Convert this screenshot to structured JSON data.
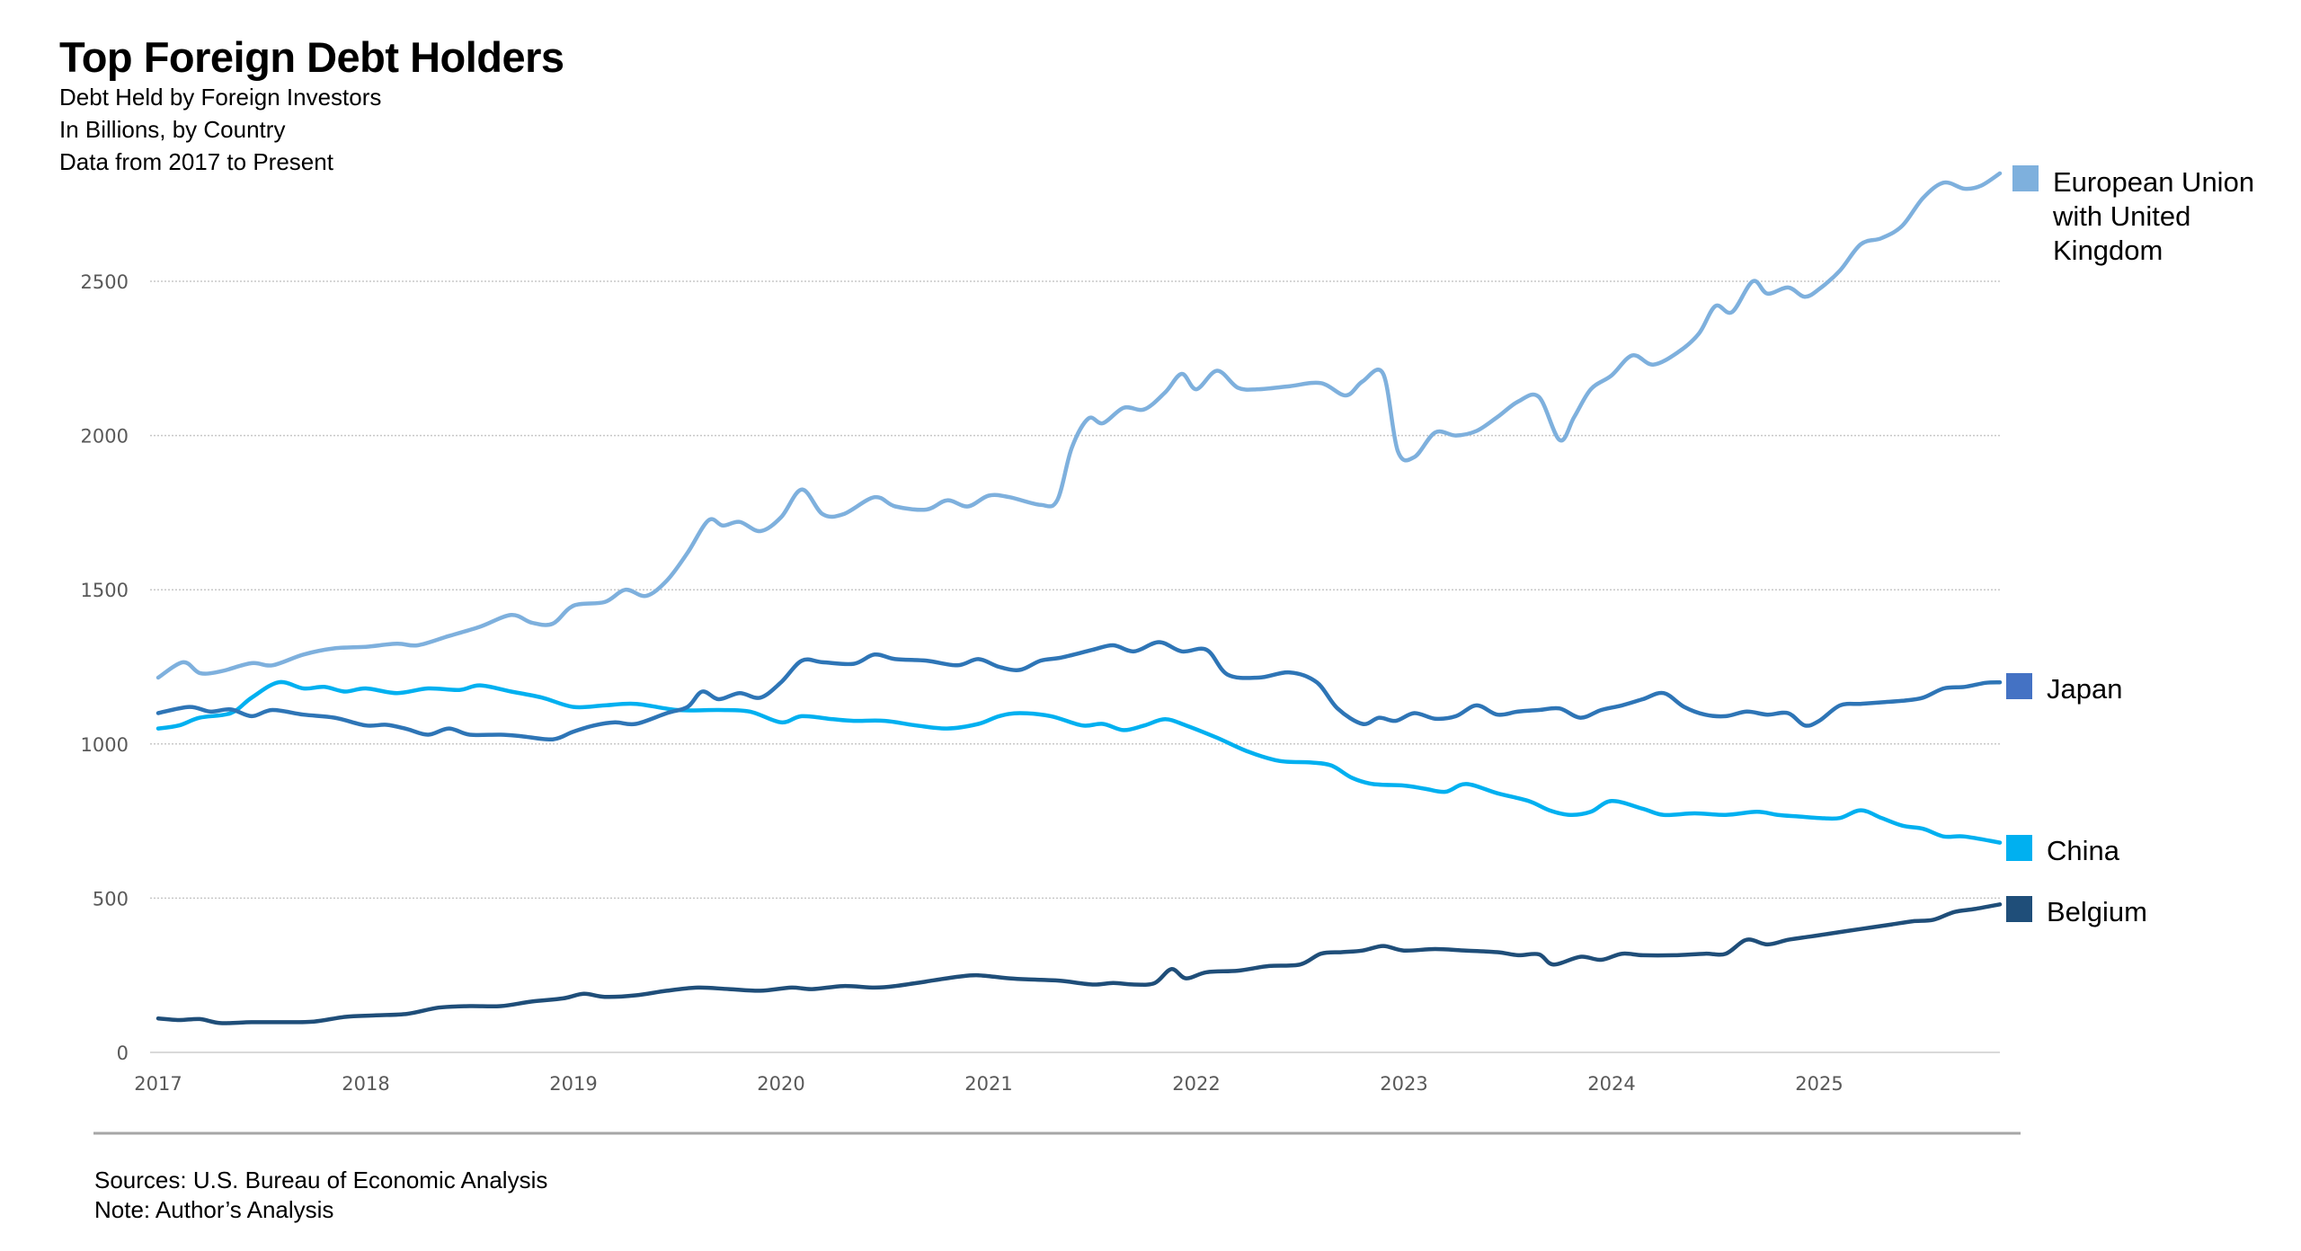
{
  "header": {
    "title": "Top Foreign Debt Holders",
    "subtitle_lines": [
      "Debt Held by Foreign Investors",
      "In Billions, by Country",
      "Data from 2017 to Present"
    ]
  },
  "footer": {
    "sources": "Sources:  U.S. Bureau of Economic Analysis",
    "note": "Note: Author’s Analysis"
  },
  "chart_data": {
    "type": "line",
    "title": "Top Foreign Debt Holders",
    "xlabel": "",
    "ylabel": "",
    "xlim": [
      2017,
      2025.87
    ],
    "ylim": [
      0,
      2850
    ],
    "yticks": [
      0,
      500,
      1000,
      1500,
      2000,
      2500
    ],
    "ytick_labels": [
      "0",
      "500",
      "1000",
      "1500",
      "2000",
      "2500"
    ],
    "xticks": [
      2017,
      2018,
      2019,
      2020,
      2021,
      2022,
      2023,
      2024,
      2025
    ],
    "xtick_labels": [
      "2017",
      "2018",
      "2019",
      "2020",
      "2021",
      "2022",
      "2023",
      "2024",
      "2025"
    ],
    "grid": "horizontal-dotted",
    "legend_position": "right",
    "series": [
      {
        "name": "European Union with United Kingdom",
        "legend_lines": [
          "European Union",
          "with United",
          "Kingdom"
        ],
        "color": "#7EB0DD",
        "legend_color": "#7EB0DD",
        "x": [
          2017.0,
          2017.12,
          2017.2,
          2017.3,
          2017.45,
          2017.55,
          2017.7,
          2017.85,
          2018.0,
          2018.15,
          2018.25,
          2018.4,
          2018.55,
          2018.7,
          2018.8,
          2018.9,
          2019.0,
          2019.15,
          2019.25,
          2019.35,
          2019.45,
          2019.55,
          2019.65,
          2019.72,
          2019.8,
          2019.9,
          2020.0,
          2020.1,
          2020.2,
          2020.3,
          2020.45,
          2020.55,
          2020.7,
          2020.8,
          2020.9,
          2021.0,
          2021.1,
          2021.25,
          2021.33,
          2021.4,
          2021.48,
          2021.55,
          2021.65,
          2021.75,
          2021.85,
          2021.93,
          2022.0,
          2022.1,
          2022.2,
          2022.3,
          2022.45,
          2022.6,
          2022.72,
          2022.8,
          2022.9,
          2022.97,
          2023.05,
          2023.15,
          2023.25,
          2023.35,
          2023.45,
          2023.55,
          2023.65,
          2023.75,
          2023.82,
          2023.9,
          2024.0,
          2024.1,
          2024.2,
          2024.32,
          2024.42,
          2024.5,
          2024.58,
          2024.68,
          2024.75,
          2024.85,
          2024.93,
          2025.0,
          2025.1,
          2025.2,
          2025.3,
          2025.4,
          2025.5,
          2025.6,
          2025.7,
          2025.78,
          2025.87
        ],
        "values": [
          1215,
          1265,
          1230,
          1235,
          1262,
          1255,
          1290,
          1310,
          1315,
          1325,
          1320,
          1350,
          1380,
          1418,
          1393,
          1390,
          1448,
          1460,
          1500,
          1480,
          1530,
          1620,
          1725,
          1708,
          1720,
          1690,
          1735,
          1825,
          1745,
          1745,
          1800,
          1770,
          1760,
          1790,
          1770,
          1805,
          1800,
          1775,
          1790,
          1960,
          2055,
          2040,
          2090,
          2085,
          2140,
          2200,
          2150,
          2210,
          2155,
          2150,
          2160,
          2170,
          2130,
          2175,
          2200,
          1950,
          1930,
          2010,
          2000,
          2015,
          2060,
          2110,
          2125,
          1985,
          2060,
          2150,
          2195,
          2260,
          2230,
          2270,
          2330,
          2420,
          2400,
          2500,
          2460,
          2480,
          2450,
          2475,
          2535,
          2620,
          2640,
          2680,
          2770,
          2820,
          2800,
          2810,
          2850
        ]
      },
      {
        "name": "Japan",
        "legend_lines": [
          "Japan"
        ],
        "color": "#2E75B6",
        "legend_color": "#4472C4",
        "x": [
          2017.0,
          2017.15,
          2017.25,
          2017.35,
          2017.45,
          2017.55,
          2017.7,
          2017.85,
          2018.0,
          2018.1,
          2018.2,
          2018.3,
          2018.4,
          2018.5,
          2018.65,
          2018.75,
          2018.9,
          2019.0,
          2019.1,
          2019.2,
          2019.3,
          2019.45,
          2019.55,
          2019.62,
          2019.7,
          2019.8,
          2019.9,
          2020.0,
          2020.1,
          2020.2,
          2020.35,
          2020.45,
          2020.55,
          2020.7,
          2020.85,
          2020.95,
          2021.05,
          2021.15,
          2021.25,
          2021.35,
          2021.5,
          2021.6,
          2021.7,
          2021.82,
          2021.93,
          2022.05,
          2022.15,
          2022.3,
          2022.45,
          2022.58,
          2022.68,
          2022.8,
          2022.88,
          2022.96,
          2023.05,
          2023.15,
          2023.25,
          2023.35,
          2023.45,
          2023.55,
          2023.65,
          2023.75,
          2023.85,
          2023.95,
          2024.05,
          2024.15,
          2024.25,
          2024.35,
          2024.45,
          2024.55,
          2024.65,
          2024.75,
          2024.85,
          2024.93,
          2025.0,
          2025.1,
          2025.2,
          2025.3,
          2025.4,
          2025.5,
          2025.6,
          2025.7,
          2025.8,
          2025.87
        ],
        "values": [
          1100,
          1120,
          1105,
          1112,
          1090,
          1110,
          1095,
          1085,
          1060,
          1062,
          1048,
          1030,
          1050,
          1030,
          1030,
          1025,
          1015,
          1040,
          1060,
          1070,
          1065,
          1100,
          1120,
          1170,
          1145,
          1165,
          1150,
          1200,
          1270,
          1265,
          1260,
          1290,
          1275,
          1270,
          1255,
          1275,
          1250,
          1240,
          1270,
          1280,
          1305,
          1320,
          1300,
          1330,
          1300,
          1305,
          1225,
          1215,
          1232,
          1200,
          1115,
          1065,
          1085,
          1075,
          1100,
          1082,
          1090,
          1125,
          1095,
          1105,
          1110,
          1115,
          1085,
          1110,
          1125,
          1145,
          1165,
          1120,
          1095,
          1090,
          1105,
          1095,
          1100,
          1060,
          1075,
          1125,
          1130,
          1135,
          1140,
          1150,
          1180,
          1185,
          1198,
          1200
        ]
      },
      {
        "name": "China",
        "legend_lines": [
          "China"
        ],
        "color": "#00B0F0",
        "legend_color": "#00B0F0",
        "x": [
          2017.0,
          2017.1,
          2017.2,
          2017.35,
          2017.45,
          2017.58,
          2017.7,
          2017.8,
          2017.9,
          2018.0,
          2018.15,
          2018.3,
          2018.45,
          2018.55,
          2018.7,
          2018.85,
          2019.0,
          2019.15,
          2019.3,
          2019.5,
          2019.7,
          2019.85,
          2020.0,
          2020.1,
          2020.25,
          2020.35,
          2020.5,
          2020.65,
          2020.8,
          2020.95,
          2021.05,
          2021.15,
          2021.3,
          2021.45,
          2021.55,
          2021.65,
          2021.75,
          2021.85,
          2021.95,
          2022.1,
          2022.25,
          2022.4,
          2022.55,
          2022.65,
          2022.75,
          2022.85,
          2023.0,
          2023.1,
          2023.2,
          2023.3,
          2023.45,
          2023.6,
          2023.7,
          2023.8,
          2023.9,
          2024.0,
          2024.15,
          2024.25,
          2024.4,
          2024.55,
          2024.7,
          2024.8,
          2024.9,
          2025.0,
          2025.1,
          2025.2,
          2025.3,
          2025.4,
          2025.5,
          2025.6,
          2025.7,
          2025.87
        ],
        "values": [
          1050,
          1060,
          1085,
          1100,
          1150,
          1200,
          1180,
          1185,
          1170,
          1180,
          1165,
          1180,
          1175,
          1190,
          1170,
          1150,
          1120,
          1125,
          1130,
          1110,
          1110,
          1105,
          1070,
          1090,
          1080,
          1075,
          1075,
          1060,
          1050,
          1065,
          1090,
          1100,
          1090,
          1060,
          1065,
          1045,
          1060,
          1080,
          1060,
          1020,
          975,
          945,
          940,
          930,
          890,
          870,
          865,
          855,
          845,
          870,
          840,
          815,
          785,
          770,
          780,
          815,
          790,
          770,
          775,
          770,
          780,
          770,
          765,
          760,
          760,
          785,
          760,
          735,
          725,
          700,
          700,
          680
        ]
      },
      {
        "name": "Belgium",
        "legend_lines": [
          "Belgium"
        ],
        "color": "#1F4E79",
        "legend_color": "#1F4E79",
        "x": [
          2017.0,
          2017.1,
          2017.2,
          2017.3,
          2017.45,
          2017.6,
          2017.75,
          2017.9,
          2018.05,
          2018.2,
          2018.35,
          2018.5,
          2018.65,
          2018.8,
          2018.95,
          2019.05,
          2019.15,
          2019.3,
          2019.45,
          2019.6,
          2019.75,
          2019.9,
          2020.05,
          2020.15,
          2020.3,
          2020.45,
          2020.55,
          2020.7,
          2020.85,
          2020.95,
          2021.1,
          2021.25,
          2021.35,
          2021.5,
          2021.6,
          2021.7,
          2021.8,
          2021.88,
          2021.95,
          2022.05,
          2022.2,
          2022.35,
          2022.5,
          2022.6,
          2022.7,
          2022.8,
          2022.9,
          2023.0,
          2023.15,
          2023.3,
          2023.45,
          2023.55,
          2023.65,
          2023.72,
          2023.85,
          2023.95,
          2024.05,
          2024.15,
          2024.3,
          2024.45,
          2024.55,
          2024.65,
          2024.75,
          2024.85,
          2024.95,
          2025.05,
          2025.2,
          2025.35,
          2025.45,
          2025.55,
          2025.65,
          2025.75,
          2025.87
        ],
        "values": [
          110,
          105,
          108,
          95,
          98,
          98,
          100,
          115,
          120,
          125,
          145,
          150,
          150,
          165,
          175,
          190,
          180,
          185,
          200,
          210,
          205,
          200,
          210,
          205,
          215,
          210,
          215,
          230,
          245,
          250,
          240,
          235,
          232,
          220,
          225,
          220,
          225,
          270,
          240,
          260,
          265,
          280,
          285,
          320,
          325,
          330,
          345,
          330,
          335,
          330,
          325,
          315,
          318,
          285,
          310,
          300,
          320,
          315,
          315,
          320,
          320,
          365,
          350,
          365,
          375,
          385,
          400,
          415,
          425,
          430,
          455,
          465,
          480
        ]
      }
    ]
  }
}
